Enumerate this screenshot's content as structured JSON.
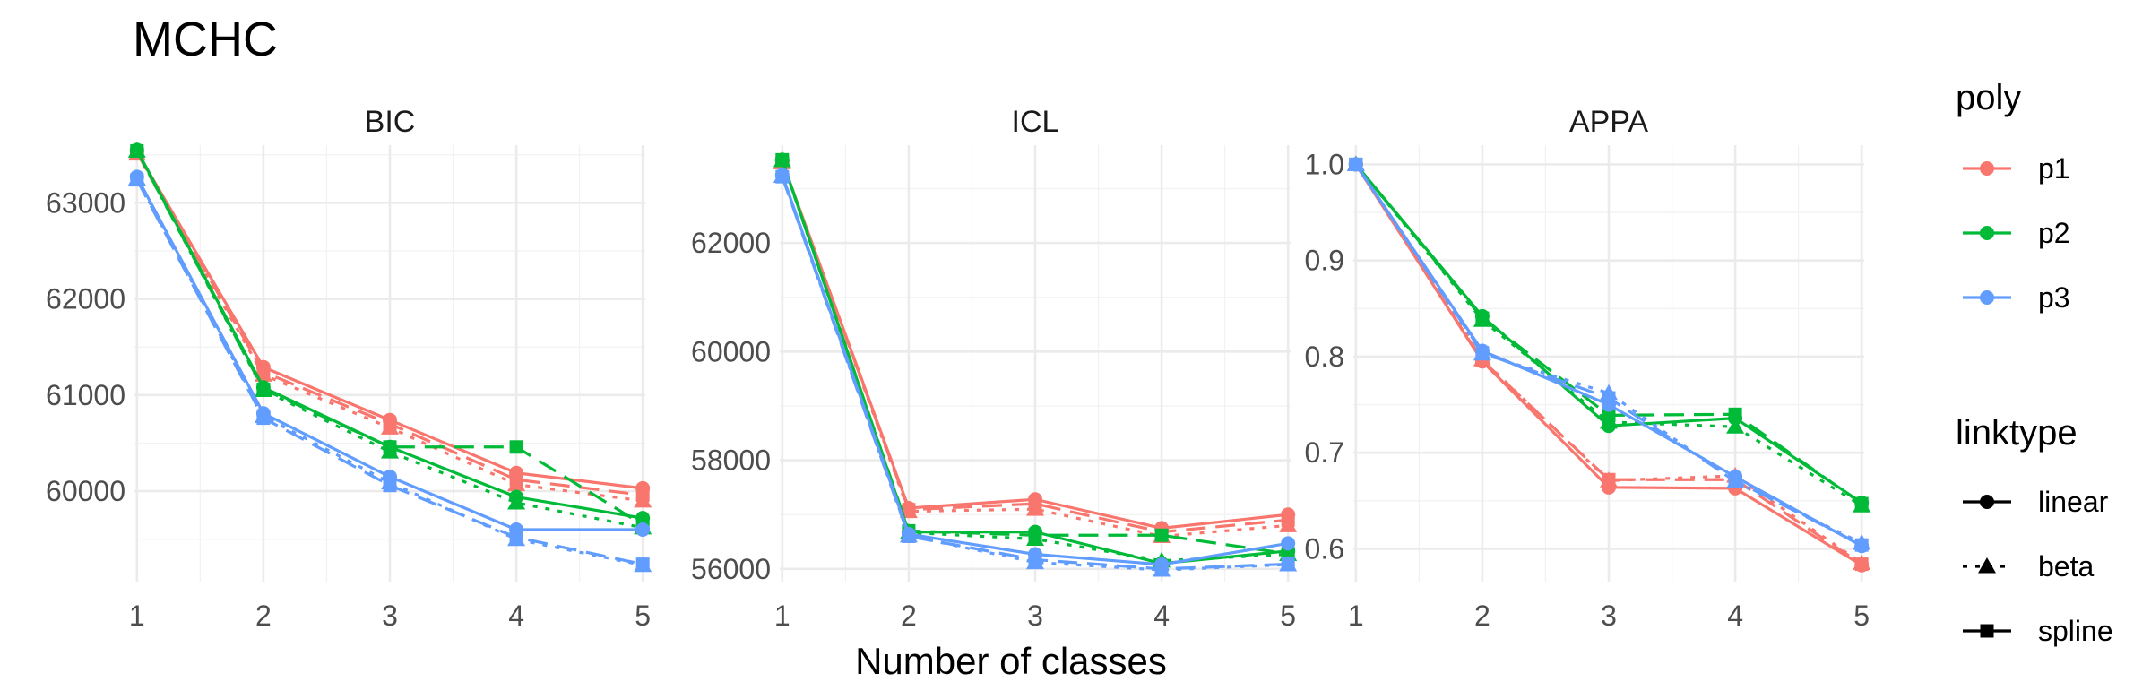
{
  "chart_data": {
    "type": "line",
    "title": "MCHC",
    "xlabel": "Number of classes",
    "x": [
      1,
      2,
      3,
      4,
      5
    ],
    "colors": {
      "p1": "#F8766D",
      "p2": "#00BA38",
      "p3": "#619CFF"
    },
    "legend": {
      "placement": "right",
      "poly": {
        "title": "poly",
        "items": [
          "p1",
          "p2",
          "p3"
        ]
      },
      "linktype": {
        "title": "linktype",
        "items": [
          "linear",
          "beta",
          "spline"
        ]
      }
    },
    "panels": [
      {
        "name": "BIC",
        "ylim": [
          59050,
          63600
        ],
        "yticks": [
          60000,
          61000,
          62000,
          63000
        ],
        "series": [
          {
            "poly": "p1",
            "linktype": "linear",
            "values": [
              63530,
              61290,
              60740,
              60190,
              60030
            ]
          },
          {
            "poly": "p1",
            "linktype": "beta",
            "values": [
              63510,
              61210,
              60660,
              60070,
              59900
            ]
          },
          {
            "poly": "p1",
            "linktype": "spline",
            "values": [
              63520,
              61240,
              60700,
              60120,
              59960
            ]
          },
          {
            "poly": "p2",
            "linktype": "linear",
            "values": [
              63550,
              61080,
              60460,
              59940,
              59720
            ]
          },
          {
            "poly": "p2",
            "linktype": "beta",
            "values": [
              63540,
              61050,
              60410,
              59880,
              59620
            ]
          },
          {
            "poly": "p2",
            "linktype": "spline",
            "values": [
              63540,
              61060,
              60460,
              60460,
              59650
            ]
          },
          {
            "poly": "p3",
            "linktype": "linear",
            "values": [
              63270,
              60810,
              60150,
              59600,
              59600
            ]
          },
          {
            "poly": "p3",
            "linktype": "beta",
            "values": [
              63250,
              60780,
              60090,
              59500,
              59230
            ]
          },
          {
            "poly": "p3",
            "linktype": "spline",
            "values": [
              63240,
              60760,
              60060,
              59520,
              59240
            ]
          }
        ]
      },
      {
        "name": "ICL",
        "ylim": [
          55750,
          63800
        ],
        "yticks": [
          56000,
          58000,
          60000,
          62000
        ],
        "series": [
          {
            "poly": "p1",
            "linktype": "linear",
            "values": [
              63500,
              57120,
              57280,
              56750,
              57000
            ]
          },
          {
            "poly": "p1",
            "linktype": "beta",
            "values": [
              63480,
              57060,
              57100,
              56600,
              56800
            ]
          },
          {
            "poly": "p1",
            "linktype": "spline",
            "values": [
              63490,
              57090,
              57200,
              56680,
              56900
            ]
          },
          {
            "poly": "p2",
            "linktype": "linear",
            "values": [
              63530,
              56680,
              56680,
              56100,
              56330
            ]
          },
          {
            "poly": "p2",
            "linktype": "beta",
            "values": [
              63520,
              56670,
              56550,
              56150,
              56270
            ]
          },
          {
            "poly": "p2",
            "linktype": "spline",
            "values": [
              63530,
              56700,
              56620,
              56620,
              56280
            ]
          },
          {
            "poly": "p3",
            "linktype": "linear",
            "values": [
              63250,
              56640,
              56270,
              56080,
              56470
            ]
          },
          {
            "poly": "p3",
            "linktype": "beta",
            "values": [
              63230,
              56610,
              56120,
              55980,
              56080
            ]
          },
          {
            "poly": "p3",
            "linktype": "spline",
            "values": [
              63220,
              56600,
              56170,
              56000,
              56090
            ]
          }
        ]
      },
      {
        "name": "APPA",
        "ylim": [
          0.565,
          1.02
        ],
        "yticks": [
          0.6,
          0.7,
          0.8,
          0.9,
          1.0
        ],
        "yticklabels": [
          "0.6",
          "0.7",
          "0.8",
          "0.9",
          "1.0"
        ],
        "series": [
          {
            "poly": "p1",
            "linktype": "linear",
            "values": [
              1.0,
              0.795,
              0.664,
              0.663,
              0.583
            ]
          },
          {
            "poly": "p1",
            "linktype": "beta",
            "values": [
              1.0,
              0.797,
              0.671,
              0.676,
              0.585
            ]
          },
          {
            "poly": "p1",
            "linktype": "spline",
            "values": [
              1.0,
              0.796,
              0.672,
              0.672,
              0.584
            ]
          },
          {
            "poly": "p2",
            "linktype": "linear",
            "values": [
              1.0,
              0.842,
              0.728,
              0.736,
              0.648
            ]
          },
          {
            "poly": "p2",
            "linktype": "beta",
            "values": [
              1.0,
              0.838,
              0.732,
              0.727,
              0.645
            ]
          },
          {
            "poly": "p2",
            "linktype": "spline",
            "values": [
              1.0,
              0.84,
              0.739,
              0.74,
              0.647
            ]
          },
          {
            "poly": "p3",
            "linktype": "linear",
            "values": [
              1.0,
              0.806,
              0.75,
              0.675,
              0.603
            ]
          },
          {
            "poly": "p3",
            "linktype": "beta",
            "values": [
              1.0,
              0.803,
              0.762,
              0.67,
              0.606
            ]
          },
          {
            "poly": "p3",
            "linktype": "spline",
            "values": [
              1.0,
              0.804,
              0.757,
              0.671,
              0.604
            ]
          }
        ]
      }
    ]
  }
}
